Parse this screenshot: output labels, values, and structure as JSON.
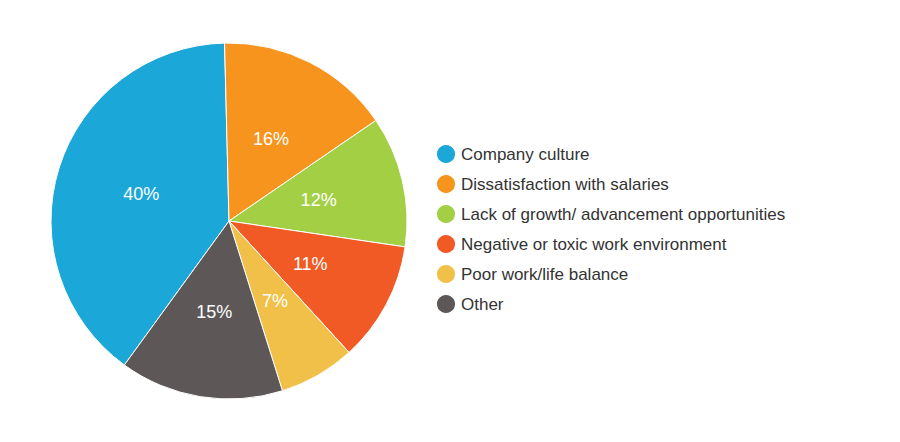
{
  "chart_data": {
    "type": "pie",
    "categories": [
      "Company culture",
      "Dissatisfaction with salaries",
      "Lack of growth/ advancement opportunities",
      "Negative or toxic work environment",
      "Poor work/life balance",
      "Other"
    ],
    "values": [
      40,
      16,
      12,
      11,
      7,
      15
    ],
    "value_labels": [
      "40%",
      "16%",
      "12%",
      "11%",
      "7%",
      "15%"
    ],
    "colors": [
      "#1ba8d9",
      "#f7941d",
      "#a3cf45",
      "#f15a24",
      "#f0c048",
      "#5d5758"
    ],
    "data_labels": true,
    "legend": "right"
  }
}
